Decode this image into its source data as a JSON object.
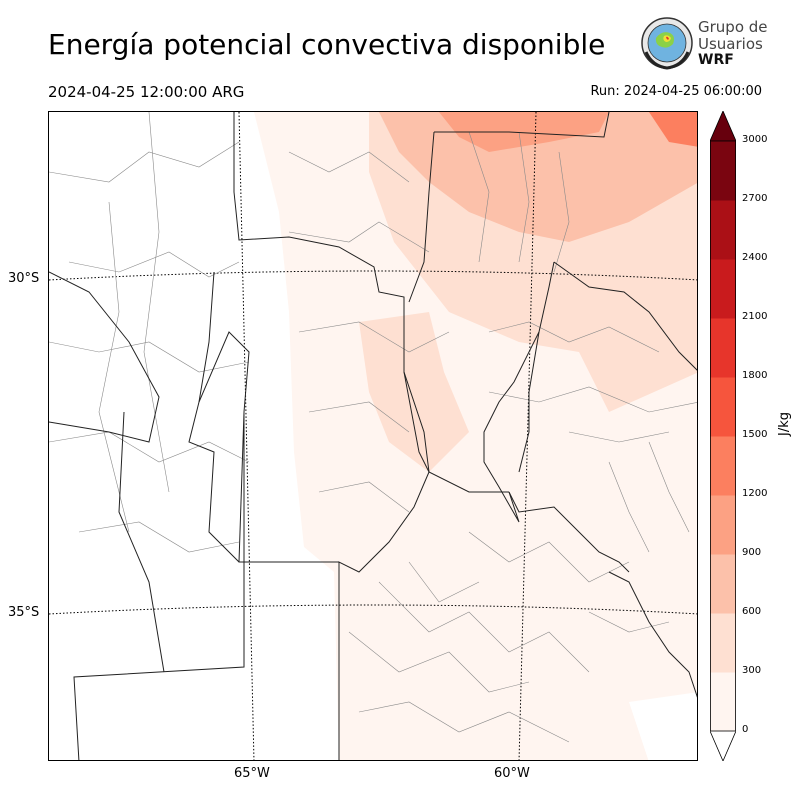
{
  "header": {
    "title": "Energía potencial convectiva disponible",
    "valid_time": "2024-04-25 12:00:00 ARG",
    "run_time": "Run: 2024-04-25 06:00:00"
  },
  "logo": {
    "line1": "Grupo de",
    "line2": "Usuarios",
    "line3": "WRF"
  },
  "map": {
    "lat_labels": [
      "30°S",
      "35°S"
    ],
    "lon_labels": [
      "65°W",
      "60°W"
    ]
  },
  "colorbar": {
    "unit": "J/kg",
    "ticks": [
      "0",
      "300",
      "600",
      "900",
      "1200",
      "1500",
      "1800",
      "2100",
      "2400",
      "2700",
      "3000"
    ],
    "colors": [
      "#fff5f0",
      "#fee0d2",
      "#fcc1aa",
      "#fca183",
      "#fc7f5f",
      "#f6553d",
      "#e7352b",
      "#c91b1d",
      "#ab1016",
      "#7a0510"
    ],
    "extend_low_color": "#ffffff",
    "extend_high_color": "#67000d"
  }
}
